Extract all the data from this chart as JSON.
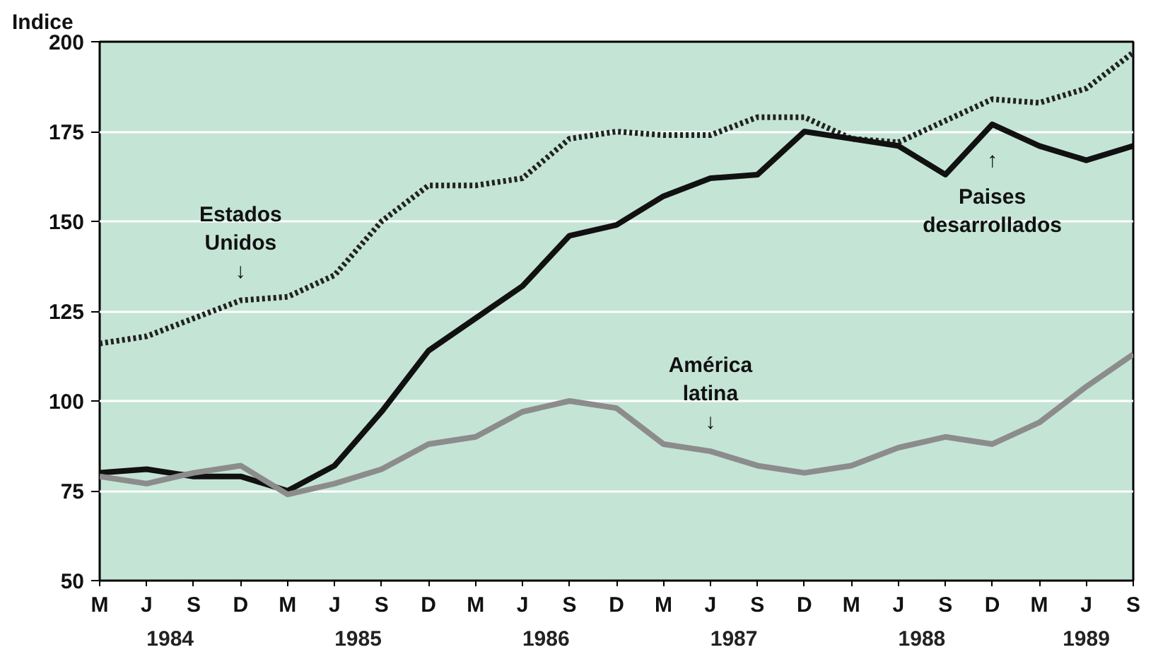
{
  "chart_data": {
    "type": "line",
    "ylabel": "Indice",
    "categories": [
      "M",
      "J",
      "S",
      "D",
      "M",
      "J",
      "S",
      "D",
      "M",
      "J",
      "S",
      "D",
      "M",
      "J",
      "S",
      "D",
      "M",
      "J",
      "S",
      "D",
      "M",
      "J",
      "S"
    ],
    "series": [
      {
        "color": "#222222",
        "line_style": "dotted",
        "values": [
          116,
          118,
          123,
          128,
          129,
          135,
          150,
          160,
          160,
          162,
          173,
          175,
          174,
          174,
          179,
          179,
          173,
          172,
          178,
          184,
          183,
          187,
          197
        ]
      },
      {
        "color": "#111111",
        "line_style": "solid",
        "values": [
          80,
          81,
          79,
          79,
          75,
          82,
          97,
          114,
          123,
          132,
          146,
          149,
          157,
          162,
          163,
          175,
          173,
          171,
          163,
          177,
          171,
          167,
          171
        ]
      },
      {
        "color": "#8c8c8c",
        "line_style": "solid",
        "values": [
          79,
          77,
          80,
          82,
          74,
          77,
          81,
          88,
          90,
          97,
          100,
          98,
          88,
          86,
          82,
          80,
          82,
          87,
          90,
          88,
          94,
          104,
          113
        ]
      }
    ],
    "annotations": [
      {
        "text": "Estados\nUnidos\n↓",
        "x": "D",
        "y": 128
      },
      "América\nlatina\n↓",
      "↑\nPaises\ndesarrollados",
      "1984",
      "1985",
      "1986",
      "1987",
      "1988",
      "1989"
    ],
    "ylim": [
      50,
      200
    ],
    "yticks": [
      50,
      75,
      100,
      125,
      150,
      175,
      200
    ],
    "grid": "y"
  }
}
